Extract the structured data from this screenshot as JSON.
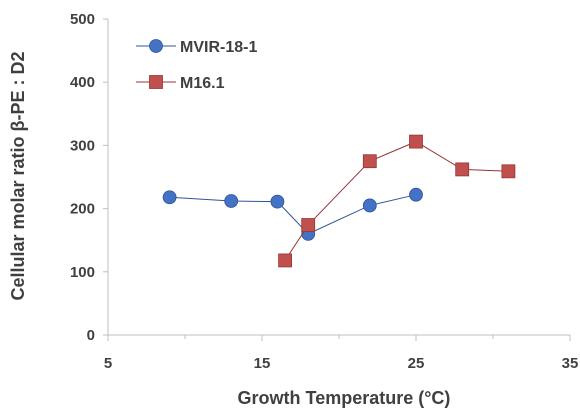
{
  "chart_data": {
    "type": "scatter",
    "title": "",
    "xlabel": "Growth Temperature (°C)",
    "ylabel": "Cellular molar ratio β-PE : D2",
    "xlim": [
      5,
      35
    ],
    "ylim": [
      0,
      500
    ],
    "x_ticks": [
      5,
      15,
      25,
      35
    ],
    "x_minor_ticks": [
      10,
      20,
      30
    ],
    "y_ticks": [
      0,
      100,
      200,
      300,
      400,
      500
    ],
    "grid": false,
    "legend_position": "top-left",
    "series": [
      {
        "name": "MVIR-18-1",
        "color": "#4472C4",
        "line_color": "#2F5597",
        "marker": "circle",
        "points": [
          [
            9,
            218
          ],
          [
            13,
            212
          ],
          [
            16,
            211
          ],
          [
            18,
            160
          ],
          [
            22,
            205
          ],
          [
            25,
            222
          ]
        ]
      },
      {
        "name": "M16.1",
        "color": "#C0504D",
        "line_color": "#943634",
        "marker": "square",
        "points": [
          [
            16.5,
            118
          ],
          [
            18,
            174
          ],
          [
            22,
            275
          ],
          [
            25,
            306
          ],
          [
            28,
            262
          ],
          [
            31,
            259
          ]
        ]
      }
    ]
  }
}
